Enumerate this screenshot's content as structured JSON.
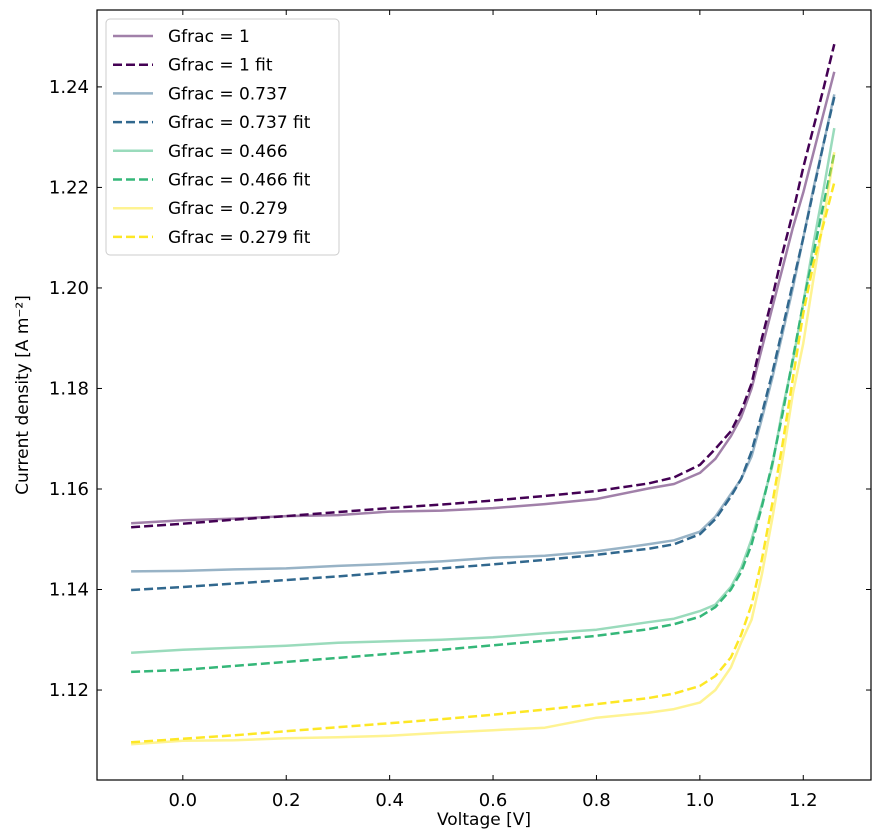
{
  "chart_data": {
    "type": "line",
    "title": "",
    "xlabel": "Voltage [V]",
    "ylabel": "Current density [A m⁻²]",
    "xlim": [
      -0.166,
      1.331
    ],
    "ylim": [
      1.1021,
      1.2553
    ],
    "xticks": [
      "0.0",
      "0.2",
      "0.4",
      "0.6",
      "0.8",
      "1.0",
      "1.2"
    ],
    "yticks": [
      "1.12",
      "1.14",
      "1.16",
      "1.18",
      "1.20",
      "1.22",
      "1.24"
    ],
    "grid": false,
    "legend_position": "top-left",
    "x": [
      -0.1,
      0,
      0.1,
      0.2,
      0.3,
      0.4,
      0.5,
      0.6,
      0.7,
      0.8,
      0.9,
      0.95,
      1.0,
      1.03,
      1.06,
      1.08,
      1.1,
      1.12,
      1.14,
      1.16,
      1.18,
      1.2,
      1.22,
      1.24,
      1.26
    ],
    "series": [
      {
        "name": "Gfrac = 1",
        "color": "#440154",
        "style": "solid",
        "alpha": 0.5,
        "values": [
          1.1532,
          1.1538,
          1.1541,
          1.1546,
          1.1548,
          1.1555,
          1.1557,
          1.1562,
          1.157,
          1.158,
          1.1601,
          1.161,
          1.1632,
          1.166,
          1.1705,
          1.1743,
          1.18,
          1.188,
          1.196,
          1.204,
          1.212,
          1.219,
          1.227,
          1.235,
          1.243
        ]
      },
      {
        "name": "Gfrac = 1 fit",
        "color": "#440154",
        "style": "dashed",
        "alpha": 1,
        "values": [
          1.1524,
          1.1531,
          1.1539,
          1.1546,
          1.1554,
          1.1562,
          1.1569,
          1.1577,
          1.1586,
          1.1596,
          1.1611,
          1.1623,
          1.1648,
          1.168,
          1.1715,
          1.1755,
          1.181,
          1.19,
          1.198,
          1.207,
          1.215,
          1.224,
          1.232,
          1.24,
          1.2485
        ]
      },
      {
        "name": "Gfrac = 0.737",
        "color": "#31688e",
        "style": "solid",
        "alpha": 0.5,
        "values": [
          1.1436,
          1.1437,
          1.144,
          1.1442,
          1.1447,
          1.1451,
          1.1456,
          1.1463,
          1.1467,
          1.1476,
          1.149,
          1.1498,
          1.1515,
          1.1545,
          1.159,
          1.162,
          1.1665,
          1.174,
          1.182,
          1.191,
          1.2,
          1.21,
          1.22,
          1.229,
          1.2385
        ]
      },
      {
        "name": "Gfrac = 0.737 fit",
        "color": "#31688e",
        "style": "dashed",
        "alpha": 1,
        "values": [
          1.1399,
          1.1405,
          1.1412,
          1.1419,
          1.1426,
          1.1434,
          1.1442,
          1.145,
          1.1459,
          1.1469,
          1.1481,
          1.149,
          1.151,
          1.154,
          1.1585,
          1.162,
          1.1675,
          1.175,
          1.183,
          1.192,
          1.201,
          1.21,
          1.2195,
          1.229,
          1.238
        ]
      },
      {
        "name": "Gfrac = 0.466",
        "color": "#35b779",
        "style": "solid",
        "alpha": 0.5,
        "values": [
          1.1274,
          1.128,
          1.1284,
          1.1288,
          1.1294,
          1.1297,
          1.13,
          1.1305,
          1.1313,
          1.132,
          1.1335,
          1.1342,
          1.1357,
          1.137,
          1.1405,
          1.1443,
          1.15,
          1.157,
          1.1645,
          1.176,
          1.1855,
          1.197,
          1.209,
          1.22,
          1.2318
        ]
      },
      {
        "name": "Gfrac = 0.466 fit",
        "color": "#35b779",
        "style": "dashed",
        "alpha": 1,
        "values": [
          1.1236,
          1.124,
          1.1248,
          1.1256,
          1.1264,
          1.1272,
          1.128,
          1.1289,
          1.1298,
          1.1308,
          1.1321,
          1.1331,
          1.1346,
          1.1365,
          1.14,
          1.1435,
          1.149,
          1.1565,
          1.165,
          1.175,
          1.186,
          1.197,
          1.207,
          1.217,
          1.2268
        ]
      },
      {
        "name": "Gfrac = 0.279",
        "color": "#fde725",
        "style": "solid",
        "alpha": 0.5,
        "values": [
          1.1092,
          1.1099,
          1.11,
          1.1104,
          1.1106,
          1.1109,
          1.1115,
          1.112,
          1.1125,
          1.1145,
          1.1155,
          1.1162,
          1.1175,
          1.12,
          1.1245,
          1.1295,
          1.134,
          1.143,
          1.154,
          1.166,
          1.179,
          1.189,
          1.202,
          1.214,
          1.227
        ]
      },
      {
        "name": "Gfrac = 0.279 fit",
        "color": "#fde725",
        "style": "dashed",
        "alpha": 1,
        "values": [
          1.1096,
          1.1103,
          1.111,
          1.1118,
          1.1126,
          1.1134,
          1.1142,
          1.1151,
          1.1161,
          1.1172,
          1.1184,
          1.1193,
          1.1208,
          1.1228,
          1.1265,
          1.131,
          1.137,
          1.146,
          1.157,
          1.169,
          1.182,
          1.195,
          1.205,
          1.213,
          1.221
        ]
      }
    ]
  }
}
